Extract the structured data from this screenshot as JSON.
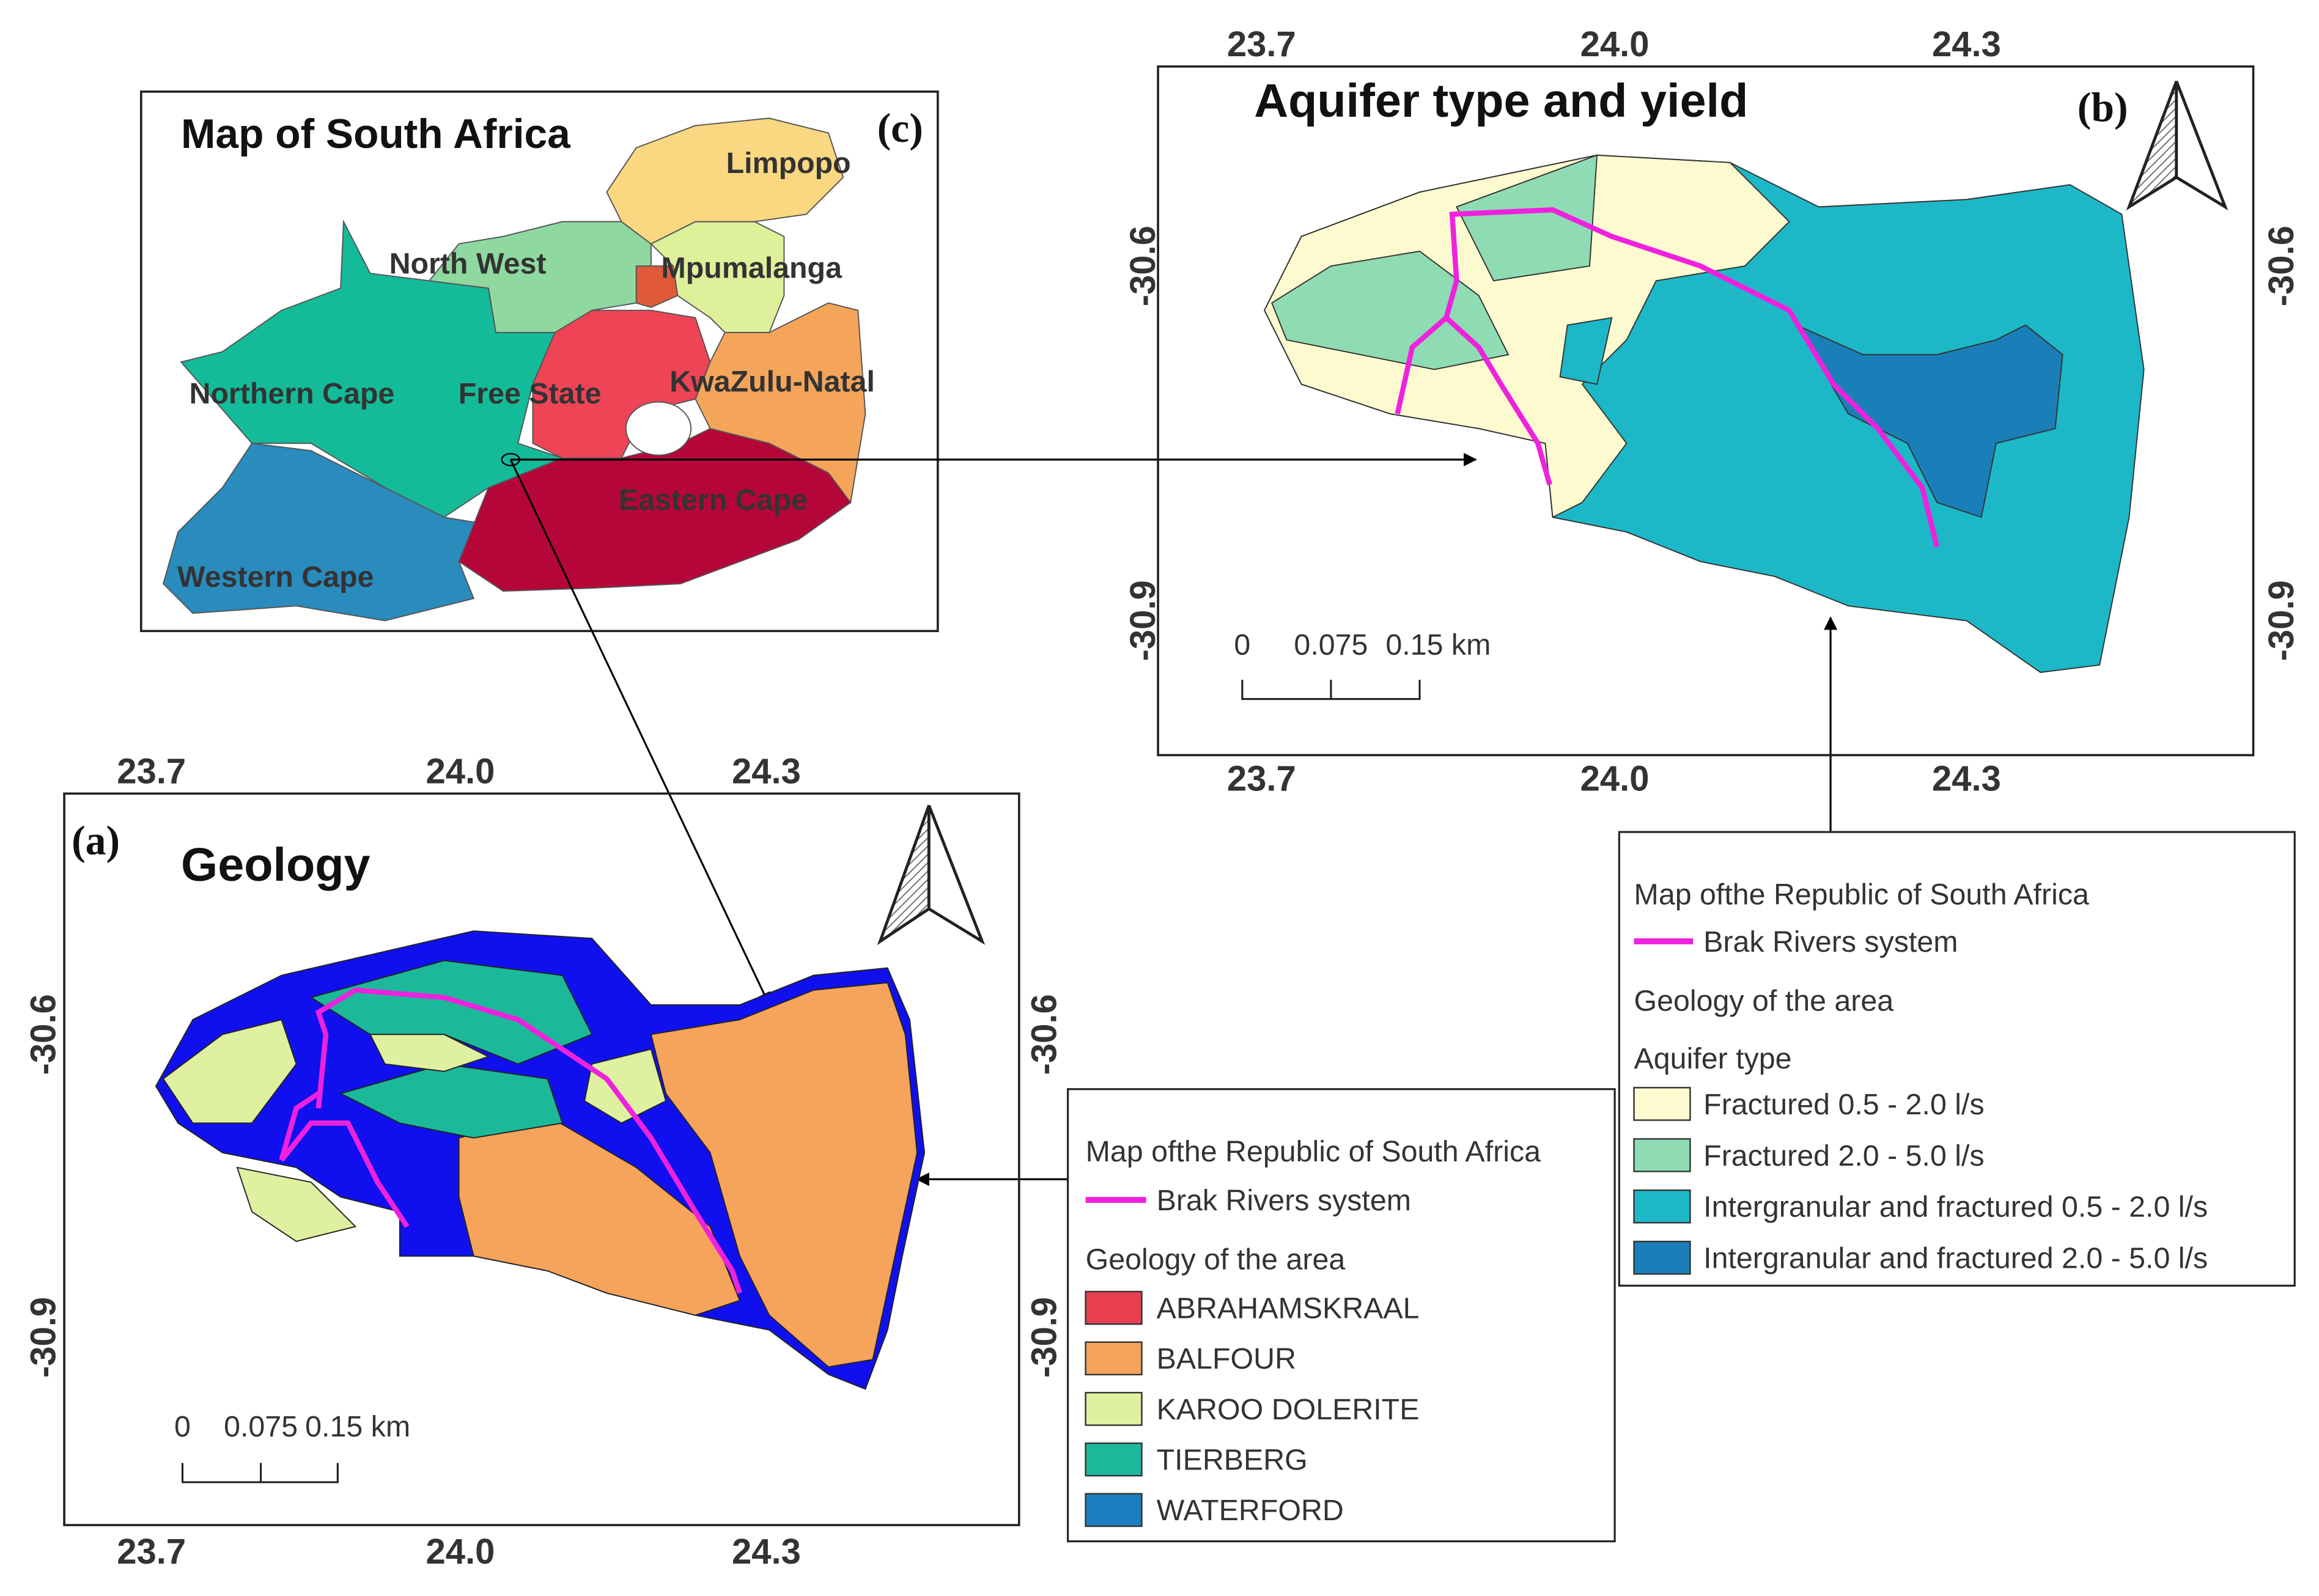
{
  "panel_c": {
    "tag": "(c)",
    "title": "Map of South Africa",
    "provinces": [
      "Limpopo",
      "North West",
      "Mpumalanga",
      "Northern Cape",
      "Free State",
      "KwaZulu-Natal",
      "Eastern Cape",
      "Western Cape"
    ]
  },
  "panel_b": {
    "tag": "(b)",
    "title": "Aquifer type and yield",
    "x_ticks_top": [
      "23.7",
      "24.0",
      "24.3"
    ],
    "x_ticks_bottom": [
      "23.7",
      "24.0",
      "24.3"
    ],
    "y_ticks_left": [
      "-30.6",
      "-30.9"
    ],
    "y_ticks_right": [
      "-30.6",
      "-30.9"
    ],
    "scale_bar": [
      "0",
      "0.075",
      "0.15 km"
    ]
  },
  "legend_b": {
    "title": "Map ofthe  Republic of South Africa",
    "river": "Brak Rivers system",
    "geology": "Geology of the area",
    "aquifer_title": "Aquifer type",
    "items": [
      {
        "label": "Fractured 0.5 - 2.0 l/s",
        "color": "#fdfad0"
      },
      {
        "label": "Fractured 2.0 - 5.0 l/s",
        "color": "#8fdcb4"
      },
      {
        "label": "Intergranular and fractured 0.5 - 2.0 l/s",
        "color": "#1cb8c8"
      },
      {
        "label": "Intergranular and fractured 2.0 - 5.0 l/s",
        "color": "#1a7fb8"
      }
    ]
  },
  "panel_a": {
    "tag": "(a)",
    "title": "Geology",
    "x_ticks_top": [
      "23.7",
      "24.0",
      "24.3"
    ],
    "x_ticks_bottom": [
      "23.7",
      "24.0",
      "24.3"
    ],
    "y_ticks_left": [
      "-30.6",
      "-30.9"
    ],
    "y_ticks_right": [
      "-30.6",
      "-30.9"
    ],
    "scale_bar": [
      "0",
      "0.075",
      "0.15 km"
    ]
  },
  "legend_a": {
    "title": "Map ofthe  Republic of South Africa",
    "river": "Brak Rivers system",
    "geology": "Geology of the area",
    "items": [
      {
        "label": "ABRAHAMSKRAAL",
        "color": "#e8404f"
      },
      {
        "label": "BALFOUR",
        "color": "#f6a35c"
      },
      {
        "label": "KAROO DOLERITE",
        "color": "#dff0a0"
      },
      {
        "label": "TIERBERG",
        "color": "#1bb99a"
      },
      {
        "label": "WATERFORD",
        "color": "#1d7fc0"
      }
    ]
  }
}
